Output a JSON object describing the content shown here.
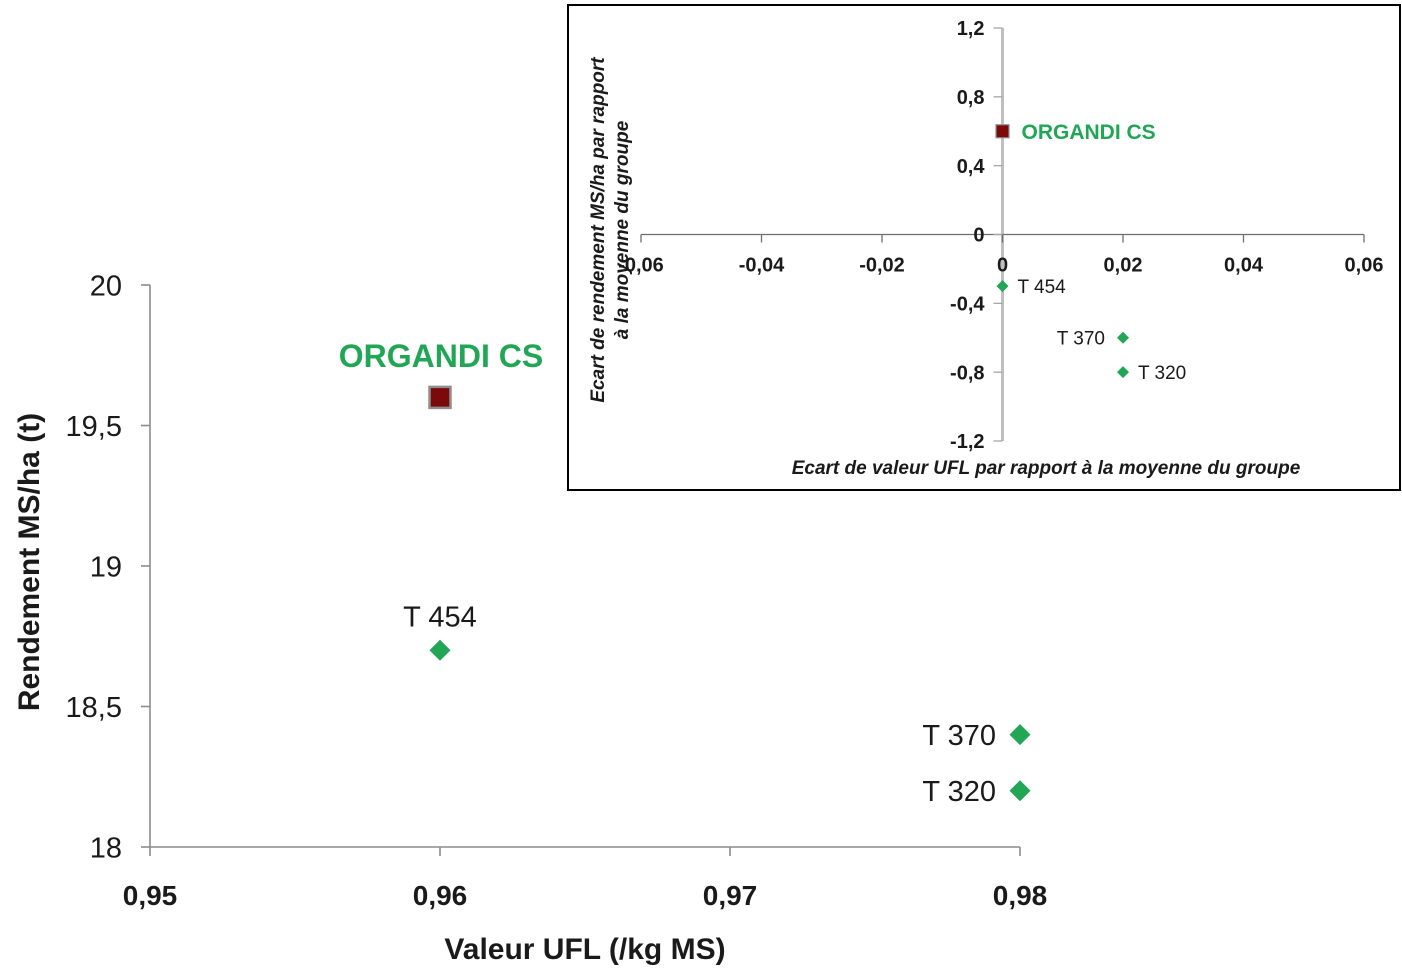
{
  "chart_data": [
    {
      "type": "scatter",
      "xlabel": "Valeur UFL (/kg MS)",
      "ylabel": "Rendement MS/ha (t)",
      "xlim": [
        0.95,
        0.98
      ],
      "ylim": [
        18,
        20
      ],
      "xticks": [
        0.95,
        0.96,
        0.97,
        0.98
      ],
      "xtick_labels": [
        "0,95",
        "0,96",
        "0,97",
        "0,98"
      ],
      "yticks": [
        18,
        18.5,
        19,
        19.5,
        20
      ],
      "ytick_labels": [
        "18",
        "18,5",
        "19",
        "19,5",
        "20"
      ],
      "grid": false,
      "points": [
        {
          "label": "ORGANDI CS",
          "x": 0.96,
          "y": 19.6,
          "marker": "square",
          "color": "#7b0a0a",
          "label_color": "#21a656"
        },
        {
          "label": "T 454",
          "x": 0.96,
          "y": 18.7,
          "marker": "diamond",
          "color": "#21a656",
          "label_color": "#1a1a1a"
        },
        {
          "label": "T 370",
          "x": 0.98,
          "y": 18.4,
          "marker": "diamond",
          "color": "#21a656",
          "label_color": "#1a1a1a"
        },
        {
          "label": "T 320",
          "x": 0.98,
          "y": 18.2,
          "marker": "diamond",
          "color": "#21a656",
          "label_color": "#1a1a1a"
        }
      ]
    },
    {
      "type": "scatter",
      "xlabel": "Ecart de valeur UFL par rapport à la moyenne du groupe",
      "ylabel": [
        "Ecart de rendement MS/ha par rapport",
        "à la moyenne du groupe"
      ],
      "xlim": [
        -0.06,
        0.06
      ],
      "ylim": [
        -1.2,
        1.2
      ],
      "axes_cross_at": [
        0,
        0
      ],
      "xticks": [
        -0.06,
        -0.04,
        -0.02,
        0,
        0.02,
        0.04,
        0.06
      ],
      "xtick_labels": [
        "-0,06",
        "-0,04",
        "-0,02",
        "0",
        "0,02",
        "0,04",
        "0,06"
      ],
      "yticks": [
        1.2,
        0.8,
        0.4,
        0,
        -0.4,
        -0.8,
        -1.2
      ],
      "ytick_labels": [
        "1,2",
        "0,8",
        "0,4",
        "0",
        "-0,4",
        "-0,8",
        "-1,2"
      ],
      "grid": false,
      "points": [
        {
          "label": "ORGANDI CS",
          "x": 0,
          "y": 0.6,
          "marker": "square",
          "color": "#7b0a0a",
          "label_color": "#21a656"
        },
        {
          "label": "T 454",
          "x": 0,
          "y": -0.3,
          "marker": "diamond",
          "color": "#21a656",
          "label_color": "#1a1a1a"
        },
        {
          "label": "T 370",
          "x": 0.02,
          "y": -0.6,
          "marker": "diamond",
          "color": "#21a656",
          "label_color": "#1a1a1a"
        },
        {
          "label": "T 320",
          "x": 0.02,
          "y": -0.8,
          "marker": "diamond",
          "color": "#21a656",
          "label_color": "#1a1a1a"
        }
      ]
    }
  ]
}
